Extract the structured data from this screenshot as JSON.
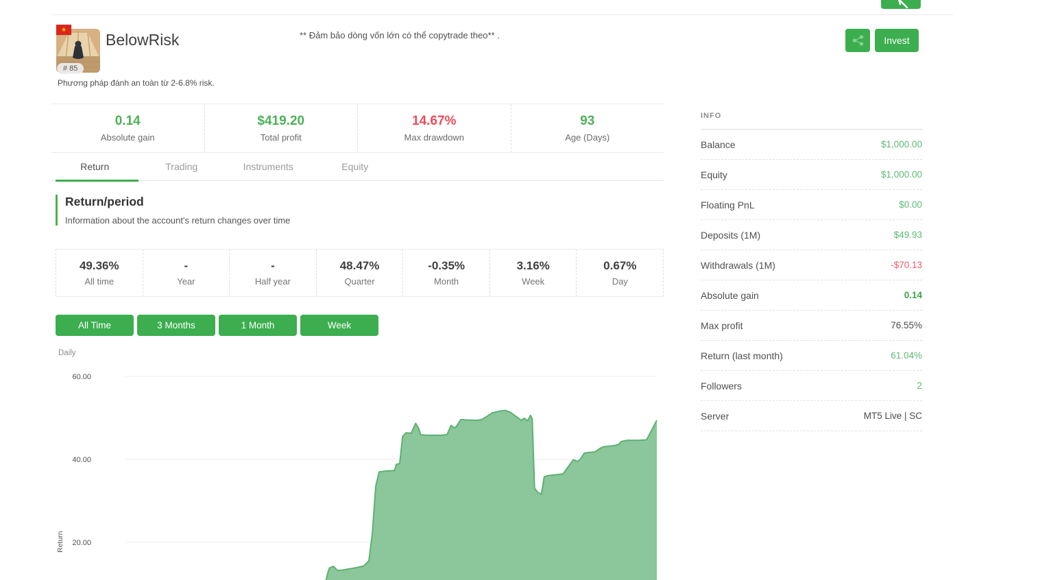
{
  "header": {
    "name": "BelowRisk",
    "rank": "# 85",
    "quote": "** Đảm bảo dòng vốn lớn có thể copytrade theo** .",
    "description": "Phương pháp đánh an toàn từ 2-6.8% risk.",
    "invest_label": "Invest",
    "icons": {
      "share": "share-nodes",
      "back": "arrow-left",
      "flag": "vietnam-flag",
      "flag_star": "★"
    }
  },
  "summary_stats": [
    {
      "value": "0.14",
      "label": "Absolute gain",
      "color": "green"
    },
    {
      "value": "$419.20",
      "label": "Total profit",
      "color": "green"
    },
    {
      "value": "14.67%",
      "label": "Max drawdown",
      "color": "red"
    },
    {
      "value": "93",
      "label": "Age (Days)",
      "color": "green"
    }
  ],
  "tabs": [
    {
      "label": "Return",
      "active": true
    },
    {
      "label": "Trading",
      "active": false
    },
    {
      "label": "Instruments",
      "active": false
    },
    {
      "label": "Equity",
      "active": false
    }
  ],
  "section": {
    "title": "Return/period",
    "subtitle": "Information about the account's return changes over time"
  },
  "periods": [
    {
      "value": "49.36%",
      "label": "All time"
    },
    {
      "value": "-",
      "label": "Year"
    },
    {
      "value": "-",
      "label": "Half year"
    },
    {
      "value": "48.47%",
      "label": "Quarter"
    },
    {
      "value": "-0.35%",
      "label": "Month"
    },
    {
      "value": "3.16%",
      "label": "Week"
    },
    {
      "value": "0.67%",
      "label": "Day"
    }
  ],
  "range_buttons": [
    {
      "label": "All Time"
    },
    {
      "label": "3 Months"
    },
    {
      "label": "1 Month"
    },
    {
      "label": "Week"
    }
  ],
  "chart_data": {
    "type": "area",
    "title": "Daily",
    "ylabel": "Return",
    "xlabel": "",
    "x_unit": "day",
    "x_range": [
      0,
      93
    ],
    "y_gridlines": [
      60,
      40,
      20
    ],
    "y_tick_labels": [
      "60.00",
      "40.00",
      "20.00"
    ],
    "visible_y_min": 10.9,
    "grid": true,
    "legend": "none",
    "fill": "#8cc69b",
    "stroke": "#5cb171",
    "series": [
      {
        "name": "Return %",
        "points": [
          [
            35.1,
            10.8
          ],
          [
            35.4,
            12.6
          ],
          [
            35.7,
            13.8
          ],
          [
            36.4,
            14.2
          ],
          [
            37.1,
            13.2
          ],
          [
            38.0,
            13.3
          ],
          [
            39.2,
            13.6
          ],
          [
            40.5,
            13.9
          ],
          [
            41.7,
            14.3
          ],
          [
            42.6,
            15.5
          ],
          [
            43.2,
            22.0
          ],
          [
            43.8,
            33.5
          ],
          [
            44.4,
            37.0
          ],
          [
            45.9,
            37.2
          ],
          [
            47.1,
            37.3
          ],
          [
            47.4,
            38.8
          ],
          [
            48.0,
            39.0
          ],
          [
            48.5,
            45.5
          ],
          [
            49.1,
            46.4
          ],
          [
            50.0,
            46.3
          ],
          [
            50.8,
            48.7
          ],
          [
            51.3,
            47.5
          ],
          [
            51.7,
            45.9
          ],
          [
            53.0,
            45.8
          ],
          [
            55.4,
            45.8
          ],
          [
            56.3,
            46.0
          ],
          [
            57.0,
            48.2
          ],
          [
            57.5,
            47.6
          ],
          [
            57.9,
            47.9
          ],
          [
            58.7,
            49.6
          ],
          [
            59.6,
            49.5
          ],
          [
            61.5,
            49.4
          ],
          [
            62.4,
            49.6
          ],
          [
            63.2,
            50.3
          ],
          [
            64.2,
            51.2
          ],
          [
            65.4,
            51.6
          ],
          [
            66.5,
            51.8
          ],
          [
            67.4,
            51.3
          ],
          [
            68.3,
            50.4
          ],
          [
            69.3,
            49.4
          ],
          [
            69.8,
            49.9
          ],
          [
            70.4,
            49.3
          ],
          [
            70.9,
            50.6
          ],
          [
            71.2,
            49.8
          ],
          [
            71.6,
            33.0
          ],
          [
            72.2,
            32.0
          ],
          [
            72.8,
            31.6
          ],
          [
            73.3,
            35.8
          ],
          [
            74.0,
            36.1
          ],
          [
            75.5,
            36.3
          ],
          [
            76.6,
            36.5
          ],
          [
            77.7,
            38.6
          ],
          [
            78.4,
            39.9
          ],
          [
            79.1,
            39.5
          ],
          [
            79.6,
            40.0
          ],
          [
            80.3,
            41.5
          ],
          [
            81.3,
            41.7
          ],
          [
            82.2,
            41.8
          ],
          [
            83.0,
            42.6
          ],
          [
            83.6,
            43.0
          ],
          [
            85.5,
            43.3
          ],
          [
            86.3,
            43.6
          ],
          [
            86.8,
            44.3
          ],
          [
            87.8,
            44.6
          ],
          [
            89.7,
            44.6
          ],
          [
            91.2,
            44.7
          ],
          [
            92.1,
            47.0
          ],
          [
            92.6,
            48.4
          ],
          [
            93.0,
            49.4
          ]
        ]
      }
    ]
  },
  "info_panel": {
    "title": "INFO",
    "rows": [
      {
        "label": "Balance",
        "value": "$1,000.00",
        "color": "green"
      },
      {
        "label": "Equity",
        "value": "$1,000.00",
        "color": "green"
      },
      {
        "label": "Floating PnL",
        "value": "$0.00",
        "color": "green"
      },
      {
        "label": "Deposits (1M)",
        "value": "$49.93",
        "color": "green"
      },
      {
        "label": "Withdrawals (1M)",
        "value": "-$70.13",
        "color": "red"
      },
      {
        "label": "Absolute gain",
        "value": "0.14",
        "color": "green-bold"
      },
      {
        "label": "Max profit",
        "value": "76.55%",
        "color": "dark"
      },
      {
        "label": "Return (last month)",
        "value": "61.04%",
        "color": "green"
      },
      {
        "label": "Followers",
        "value": "2",
        "color": "green"
      },
      {
        "label": "Server",
        "value": "MT5 Live | SC",
        "color": "dark"
      }
    ]
  },
  "colors": {
    "accent_green": "#3cae4f",
    "stat_green": "#4cb158",
    "stat_red": "#ee4b58",
    "chart_fill": "#8cc69b",
    "chart_stroke": "#5cb171"
  }
}
